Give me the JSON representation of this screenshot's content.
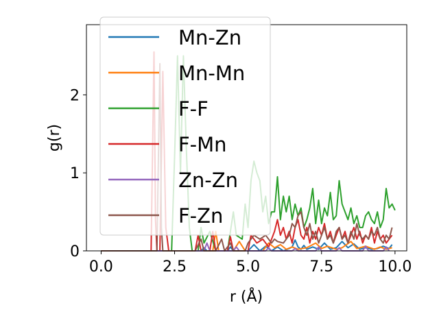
{
  "chart_data": {
    "type": "line",
    "xlabel": "r (Å)",
    "ylabel": "g(r)",
    "xlim": [
      -0.5,
      10.4
    ],
    "ylim": [
      0,
      2.9
    ],
    "xticks": [
      0.0,
      2.5,
      5.0,
      7.5,
      10.0
    ],
    "xtick_labels": [
      "0.0",
      "2.5",
      "5.0",
      "7.5",
      "10.0"
    ],
    "yticks": [
      0,
      1,
      2
    ],
    "ytick_labels": [
      "0",
      "1",
      "2"
    ],
    "grid": false,
    "legend_position": "top-left",
    "series": [
      {
        "name": "Mn-Zn",
        "color": "#1f77b4",
        "points": [
          [
            0.0,
            0
          ],
          [
            3.4,
            0
          ],
          [
            3.5,
            0.04
          ],
          [
            3.6,
            0
          ],
          [
            4.3,
            0
          ],
          [
            4.4,
            0.05
          ],
          [
            4.5,
            0
          ],
          [
            5.0,
            0
          ],
          [
            5.2,
            0.08
          ],
          [
            5.4,
            0
          ],
          [
            5.6,
            0.06
          ],
          [
            5.8,
            0
          ],
          [
            6.0,
            0.05
          ],
          [
            6.2,
            0
          ],
          [
            6.4,
            0.03
          ],
          [
            6.5,
            0.05
          ],
          [
            6.6,
            0.14
          ],
          [
            6.7,
            0.05
          ],
          [
            6.8,
            0.02
          ],
          [
            6.9,
            0.07
          ],
          [
            7.0,
            0.02
          ],
          [
            7.2,
            0.05
          ],
          [
            7.4,
            0.02
          ],
          [
            7.6,
            0.1
          ],
          [
            7.8,
            0.02
          ],
          [
            8.0,
            0.04
          ],
          [
            8.2,
            0.12
          ],
          [
            8.4,
            0.04
          ],
          [
            8.6,
            0.09
          ],
          [
            8.8,
            0.02
          ],
          [
            9.0,
            0.04
          ],
          [
            9.2,
            0.02
          ],
          [
            9.4,
            0.03
          ],
          [
            9.6,
            0.06
          ],
          [
            9.8,
            0.03
          ],
          [
            9.9,
            0.08
          ]
        ]
      },
      {
        "name": "Mn-Mn",
        "color": "#ff7f0e",
        "points": [
          [
            0.0,
            0
          ],
          [
            3.8,
            0
          ],
          [
            3.9,
            0.25
          ],
          [
            4.0,
            0
          ],
          [
            4.5,
            0
          ],
          [
            4.7,
            0.12
          ],
          [
            4.9,
            0
          ],
          [
            5.5,
            0
          ],
          [
            5.7,
            0.1
          ],
          [
            5.9,
            0.04
          ],
          [
            6.1,
            0.08
          ],
          [
            6.3,
            0.02
          ],
          [
            6.5,
            0.05
          ],
          [
            6.7,
            0.02
          ],
          [
            7.0,
            0.04
          ],
          [
            7.3,
            0.1
          ],
          [
            7.5,
            0.03
          ],
          [
            7.7,
            0.06
          ],
          [
            8.0,
            0.02
          ],
          [
            8.2,
            0.04
          ],
          [
            8.5,
            0.12
          ],
          [
            8.7,
            0.03
          ],
          [
            9.0,
            0.06
          ],
          [
            9.3,
            0.02
          ],
          [
            9.5,
            0.05
          ],
          [
            9.7,
            0.02
          ],
          [
            9.9,
            0.04
          ]
        ]
      },
      {
        "name": "F-F",
        "color": "#2ca02c",
        "points": [
          [
            0.0,
            0
          ],
          [
            2.4,
            0
          ],
          [
            2.5,
            1.2
          ],
          [
            2.6,
            2.5
          ],
          [
            2.7,
            1.0
          ],
          [
            2.8,
            2.5
          ],
          [
            2.9,
            1.3
          ],
          [
            3.0,
            0.3
          ],
          [
            3.1,
            0
          ],
          [
            3.3,
            0
          ],
          [
            3.4,
            0.3
          ],
          [
            3.5,
            0.1
          ],
          [
            3.7,
            0.25
          ],
          [
            3.9,
            0
          ],
          [
            4.3,
            0
          ],
          [
            4.5,
            0.5
          ],
          [
            4.6,
            0.2
          ],
          [
            4.8,
            0.15
          ],
          [
            4.9,
            0.6
          ],
          [
            5.0,
            0.3
          ],
          [
            5.1,
            0.9
          ],
          [
            5.2,
            1.15
          ],
          [
            5.3,
            1.0
          ],
          [
            5.4,
            0.9
          ],
          [
            5.5,
            0.5
          ],
          [
            5.6,
            0.7
          ],
          [
            5.7,
            0.35
          ],
          [
            5.8,
            0.5
          ],
          [
            5.9,
            0.5
          ],
          [
            6.0,
            0.95
          ],
          [
            6.1,
            0.4
          ],
          [
            6.2,
            0.7
          ],
          [
            6.3,
            0.5
          ],
          [
            6.4,
            0.7
          ],
          [
            6.5,
            0.4
          ],
          [
            6.6,
            0.6
          ],
          [
            6.7,
            0.45
          ],
          [
            6.8,
            0.55
          ],
          [
            6.9,
            0.3
          ],
          [
            7.0,
            0.4
          ],
          [
            7.1,
            0.55
          ],
          [
            7.2,
            0.8
          ],
          [
            7.3,
            0.35
          ],
          [
            7.4,
            0.65
          ],
          [
            7.5,
            0.35
          ],
          [
            7.6,
            0.55
          ],
          [
            7.7,
            0.45
          ],
          [
            7.8,
            0.75
          ],
          [
            7.9,
            0.4
          ],
          [
            8.0,
            0.45
          ],
          [
            8.1,
            0.9
          ],
          [
            8.2,
            0.6
          ],
          [
            8.3,
            0.5
          ],
          [
            8.4,
            0.4
          ],
          [
            8.5,
            0.55
          ],
          [
            8.6,
            0.35
          ],
          [
            8.7,
            0.45
          ],
          [
            8.8,
            0.3
          ],
          [
            8.9,
            0.3
          ],
          [
            9.0,
            0.45
          ],
          [
            9.1,
            0.5
          ],
          [
            9.2,
            0.4
          ],
          [
            9.3,
            0.35
          ],
          [
            9.4,
            0.5
          ],
          [
            9.5,
            0.3
          ],
          [
            9.6,
            0.4
          ],
          [
            9.7,
            0.8
          ],
          [
            9.8,
            0.55
          ],
          [
            9.9,
            0.6
          ],
          [
            10.0,
            0.52
          ]
        ]
      },
      {
        "name": "F-Mn",
        "color": "#d62728",
        "points": [
          [
            0.0,
            0
          ],
          [
            1.7,
            0
          ],
          [
            1.8,
            2.55
          ],
          [
            1.85,
            0.4
          ],
          [
            1.9,
            0
          ],
          [
            2.0,
            0
          ],
          [
            2.1,
            2.3
          ],
          [
            2.2,
            0.3
          ],
          [
            2.3,
            0
          ],
          [
            3.2,
            0
          ],
          [
            3.3,
            0.2
          ],
          [
            3.4,
            0
          ],
          [
            3.7,
            0
          ],
          [
            3.8,
            0.25
          ],
          [
            3.9,
            0
          ],
          [
            4.3,
            0
          ],
          [
            4.4,
            0.18
          ],
          [
            4.5,
            0
          ],
          [
            5.0,
            0
          ],
          [
            5.1,
            0.2
          ],
          [
            5.3,
            0.1
          ],
          [
            5.5,
            0.15
          ],
          [
            5.7,
            0.05
          ],
          [
            5.9,
            0.25
          ],
          [
            6.0,
            0.4
          ],
          [
            6.1,
            0.2
          ],
          [
            6.2,
            0.3
          ],
          [
            6.3,
            0.15
          ],
          [
            6.4,
            0.25
          ],
          [
            6.5,
            0.1
          ],
          [
            6.6,
            0.3
          ],
          [
            6.7,
            0.4
          ],
          [
            6.8,
            0.2
          ],
          [
            6.9,
            0.15
          ],
          [
            7.0,
            0.3
          ],
          [
            7.1,
            0.1
          ],
          [
            7.2,
            0.25
          ],
          [
            7.3,
            0.15
          ],
          [
            7.4,
            0.3
          ],
          [
            7.5,
            0.2
          ],
          [
            7.6,
            0.35
          ],
          [
            7.7,
            0.15
          ],
          [
            7.8,
            0.25
          ],
          [
            7.9,
            0.1
          ],
          [
            8.0,
            0.2
          ],
          [
            8.1,
            0.3
          ],
          [
            8.2,
            0.15
          ],
          [
            8.3,
            0.25
          ],
          [
            8.4,
            0.1
          ],
          [
            8.5,
            0.2
          ],
          [
            8.6,
            0.3
          ],
          [
            8.7,
            0.15
          ],
          [
            8.8,
            0.25
          ],
          [
            8.9,
            0.1
          ],
          [
            9.0,
            0.2
          ],
          [
            9.1,
            0.15
          ],
          [
            9.2,
            0.3
          ],
          [
            9.3,
            0.1
          ],
          [
            9.4,
            0.25
          ],
          [
            9.5,
            0.15
          ],
          [
            9.6,
            0.2
          ],
          [
            9.7,
            0.1
          ],
          [
            9.8,
            0.15
          ],
          [
            9.9,
            0.2
          ]
        ]
      },
      {
        "name": "Zn-Zn",
        "color": "#9467bd",
        "points": [
          [
            0.0,
            0
          ],
          [
            3.5,
            0
          ],
          [
            3.6,
            0.1
          ],
          [
            3.7,
            0
          ],
          [
            4.5,
            0
          ],
          [
            4.6,
            0.05
          ],
          [
            4.7,
            0
          ],
          [
            5.6,
            0
          ],
          [
            5.7,
            0.04
          ],
          [
            5.8,
            0
          ],
          [
            6.5,
            0
          ],
          [
            6.6,
            0.03
          ],
          [
            6.7,
            0
          ],
          [
            7.3,
            0
          ],
          [
            7.4,
            0.05
          ],
          [
            7.5,
            0
          ],
          [
            8.0,
            0
          ],
          [
            8.1,
            0.04
          ],
          [
            8.2,
            0
          ],
          [
            8.9,
            0
          ],
          [
            9.0,
            0.06
          ],
          [
            9.1,
            0
          ],
          [
            9.6,
            0
          ],
          [
            9.7,
            0.05
          ],
          [
            9.8,
            0
          ]
        ]
      },
      {
        "name": "F-Zn",
        "color": "#8c564b",
        "points": [
          [
            0.0,
            0
          ],
          [
            1.9,
            0
          ],
          [
            2.0,
            2.4
          ],
          [
            2.05,
            0.3
          ],
          [
            2.1,
            0
          ],
          [
            3.2,
            0
          ],
          [
            3.4,
            0.15
          ],
          [
            3.5,
            0
          ],
          [
            3.9,
            0
          ],
          [
            4.1,
            0.15
          ],
          [
            4.2,
            0
          ],
          [
            4.4,
            0.1
          ],
          [
            4.5,
            0
          ],
          [
            4.9,
            0
          ],
          [
            5.0,
            0.1
          ],
          [
            5.2,
            0.2
          ],
          [
            5.4,
            0.15
          ],
          [
            5.6,
            0.2
          ],
          [
            5.8,
            0.1
          ],
          [
            5.9,
            0.15
          ],
          [
            6.0,
            0.12
          ],
          [
            6.2,
            0.1
          ],
          [
            6.4,
            0.2
          ],
          [
            6.5,
            0.35
          ],
          [
            6.6,
            0.3
          ],
          [
            6.7,
            0.45
          ],
          [
            6.8,
            0.5
          ],
          [
            6.9,
            0.3
          ],
          [
            7.0,
            0.2
          ],
          [
            7.1,
            0.35
          ],
          [
            7.2,
            0.15
          ],
          [
            7.3,
            0.25
          ],
          [
            7.4,
            0.1
          ],
          [
            7.5,
            0.2
          ],
          [
            7.6,
            0.3
          ],
          [
            7.7,
            0.15
          ],
          [
            7.8,
            0.2
          ],
          [
            7.9,
            0.1
          ],
          [
            8.0,
            0.25
          ],
          [
            8.1,
            0.3
          ],
          [
            8.2,
            0.15
          ],
          [
            8.3,
            0.2
          ],
          [
            8.4,
            0.1
          ],
          [
            8.5,
            0.25
          ],
          [
            8.6,
            0.15
          ],
          [
            8.7,
            0.35
          ],
          [
            8.8,
            0.2
          ],
          [
            8.9,
            0.15
          ],
          [
            9.0,
            0.2
          ],
          [
            9.1,
            0.15
          ],
          [
            9.2,
            0.25
          ],
          [
            9.3,
            0.2
          ],
          [
            9.4,
            0.3
          ],
          [
            9.5,
            0.15
          ],
          [
            9.6,
            0.1
          ],
          [
            9.7,
            0.2
          ],
          [
            9.8,
            0.15
          ],
          [
            9.9,
            0.3
          ]
        ]
      }
    ]
  }
}
